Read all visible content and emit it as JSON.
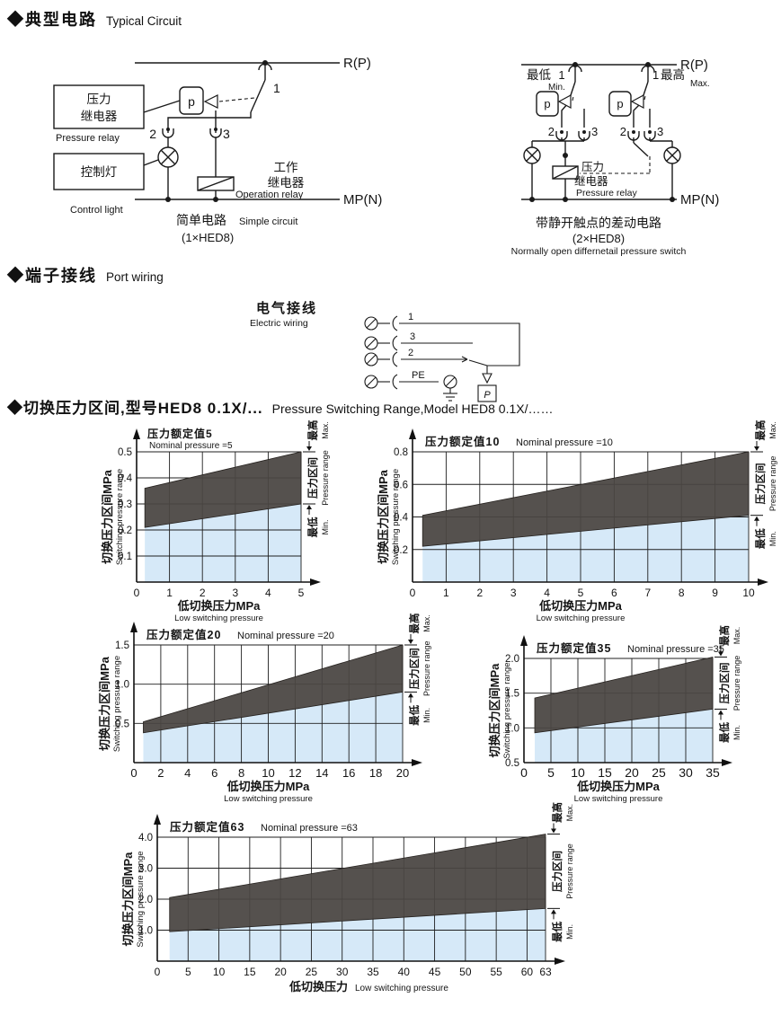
{
  "sections": {
    "typical_circuit": {
      "cn": "◆典型电路",
      "en": "Typical Circuit"
    },
    "port_wiring": {
      "cn": "◆端子接线",
      "en": "Port wiring"
    },
    "switching_range": {
      "cn": "◆切换压力区间,型号HED8 0.1X/...",
      "en": "Pressure Switching Range,Model HED8 0.1X/……"
    }
  },
  "circuit_simple": {
    "labels": {
      "rp": "R(P)",
      "mpn": "MP(N)",
      "n1": "1",
      "n2": "2",
      "n3": "3",
      "p": "p",
      "pressure_relay_cn_1": "压力",
      "pressure_relay_cn_2": "继电器",
      "pressure_relay_en": "Pressure relay",
      "control_light_cn": "控制灯",
      "control_light_en": "Control light",
      "op_relay_cn_1": "工作",
      "op_relay_cn_2": "继电器",
      "op_relay_en": "Operation relay",
      "caption_cn": "简单电路",
      "caption_en": "Simple circuit",
      "caption_model": "(1×HED8)"
    }
  },
  "circuit_diff": {
    "labels": {
      "rp": "R(P)",
      "mpn": "MP(N)",
      "min_cn": "最低",
      "min_en": "Min.",
      "max_cn": "最高",
      "max_en": "Max.",
      "n1a": "1",
      "n1b": "1",
      "n2a": "2",
      "n3a": "3",
      "n2b": "2",
      "n3b": "3",
      "pa": "p",
      "pb": "p",
      "pr_cn_1": "压力",
      "pr_cn_2": "继电器",
      "pr_en": "Pressure relay",
      "caption_cn": "带静开触点的差动电路",
      "caption_model": "(2×HED8)",
      "caption_en": "Normally open differnetail pressure switch"
    }
  },
  "wiring": {
    "title_cn": "电气接线",
    "title_en": "Electric wiring",
    "t1": "1",
    "t3": "3",
    "t2": "2",
    "tpe": "PE",
    "p": "P"
  },
  "chart_colors": {
    "band": "#4a4643",
    "blue": "#d6e9f8"
  },
  "chart_data": [
    {
      "type": "area",
      "title_cn": "压力额定值5",
      "title_en": "Nominal pressure =5",
      "x_range": [
        0,
        5
      ],
      "y_range": [
        0,
        0.5
      ],
      "x_tick_values": [
        0,
        1,
        2,
        3,
        4,
        5
      ],
      "x_tick_labels": [
        "0",
        "1",
        "2",
        "3",
        "4",
        "5"
      ],
      "y_tick_values": [
        0.1,
        0.2,
        0.3,
        0.4,
        0.5
      ],
      "y_tick_labels": [
        "0.1",
        "0.2",
        "0.3",
        "0.4",
        "0.5"
      ],
      "band": {
        "x": [
          0.25,
          5
        ],
        "lower": [
          0.21,
          0.3
        ],
        "upper": [
          0.36,
          0.5
        ]
      },
      "xlabel_cn": "低切换压力MPa",
      "xlabel_en": "Low switching pressure",
      "ylabel_cn": "切换压力区间MPa",
      "ylabel_en": "Switching pressure range",
      "right_labels": {
        "max_cn": "最高",
        "max_en": "Max.",
        "range_cn": "压力区间",
        "range_en": "Pressure range",
        "min_cn": "最低",
        "min_en": "Min."
      }
    },
    {
      "type": "area",
      "title_cn": "压力额定值10",
      "title_en": "Nominal pressure =10",
      "x_range": [
        0,
        10
      ],
      "y_range": [
        0,
        0.8
      ],
      "x_tick_values": [
        0,
        1,
        2,
        3,
        4,
        5,
        6,
        7,
        8,
        9,
        10
      ],
      "x_tick_labels": [
        "0",
        "1",
        "2",
        "3",
        "4",
        "5",
        "6",
        "7",
        "8",
        "9",
        "10"
      ],
      "y_tick_values": [
        0.2,
        0.4,
        0.6,
        0.8
      ],
      "y_tick_labels": [
        "0.2",
        "0.4",
        "0.6",
        "0.8"
      ],
      "band": {
        "x": [
          0.3,
          10
        ],
        "lower": [
          0.22,
          0.41
        ],
        "upper": [
          0.41,
          0.8
        ]
      },
      "xlabel_cn": "低切换压力MPa",
      "xlabel_en": "Low switching pressure",
      "ylabel_cn": "切换压力区间MPa",
      "ylabel_en": "Switching pressure range",
      "right_labels": {
        "max_cn": "最高",
        "max_en": "Max.",
        "range_cn": "压力区间",
        "range_en": "Pressure range",
        "min_cn": "最低",
        "min_en": "Min."
      }
    },
    {
      "type": "area",
      "title_cn": "压力额定值20",
      "title_en": "Nominal pressure =20",
      "x_range": [
        0,
        20
      ],
      "y_range": [
        0,
        1.5
      ],
      "x_tick_values": [
        0,
        2,
        4,
        6,
        8,
        10,
        12,
        14,
        16,
        18,
        20
      ],
      "x_tick_labels": [
        "0",
        "2",
        "4",
        "6",
        "8",
        "10",
        "12",
        "14",
        "16",
        "18",
        "20"
      ],
      "y_tick_values": [
        0.5,
        1.0,
        1.5
      ],
      "y_tick_labels": [
        "0.5",
        "1.0",
        "1.5"
      ],
      "band": {
        "x": [
          0.7,
          20
        ],
        "lower": [
          0.38,
          0.9
        ],
        "upper": [
          0.52,
          1.5
        ]
      },
      "xlabel_cn": "低切换压力MPa",
      "xlabel_en": "Low switching pressure",
      "ylabel_cn": "切换压力区间MPa",
      "ylabel_en": "Switching pressure range",
      "right_labels": {
        "max_cn": "最高",
        "max_en": "Max.",
        "range_cn": "压力区间",
        "range_en": "Pressure range",
        "min_cn": "最低",
        "min_en": "Min."
      }
    },
    {
      "type": "area",
      "title_cn": "压力额定值35",
      "title_en": "Nominal pressure =35",
      "x_range": [
        0,
        35
      ],
      "y_range": [
        0.5,
        2.0
      ],
      "x_tick_values": [
        0,
        5,
        10,
        15,
        20,
        25,
        30,
        35
      ],
      "x_tick_labels": [
        "0",
        "5",
        "10",
        "15",
        "20",
        "25",
        "30",
        "35"
      ],
      "y_tick_values": [
        0.5,
        1.0,
        1.5,
        2.0
      ],
      "y_tick_labels": [
        "0.5",
        "1.0",
        "1.5",
        "2.0"
      ],
      "band": {
        "x": [
          2,
          35
        ],
        "lower": [
          0.93,
          1.27
        ],
        "upper": [
          1.43,
          2.02
        ]
      },
      "xlabel_cn": "低切换压力MPa",
      "xlabel_en": "Low switching pressure",
      "ylabel_cn": "切换压力区间MPa",
      "ylabel_en": "Switching pressure range",
      "right_labels": {
        "max_cn": "最高",
        "max_en": "Max.",
        "range_cn": "压力区间",
        "range_en": "Pressure range",
        "min_cn": "最低",
        "min_en": "Min."
      }
    },
    {
      "type": "area",
      "title_cn": "压力额定值63",
      "title_en": "Nominal pressure =63",
      "x_range": [
        0,
        63
      ],
      "y_range": [
        0,
        4.0
      ],
      "x_tick_values": [
        0,
        5,
        10,
        15,
        20,
        25,
        30,
        35,
        40,
        45,
        50,
        55,
        60,
        63
      ],
      "x_tick_labels": [
        "0",
        "5",
        "10",
        "15",
        "20",
        "25",
        "30",
        "35",
        "40",
        "45",
        "50",
        "55",
        "60",
        "63"
      ],
      "y_tick_values": [
        1.0,
        2.0,
        3.0,
        4.0
      ],
      "y_tick_labels": [
        "1.0",
        "2.0",
        "3.0",
        "4.0"
      ],
      "band": {
        "x": [
          2,
          63
        ],
        "lower": [
          0.95,
          1.7
        ],
        "upper": [
          2.05,
          4.1
        ]
      },
      "xlabel_cn": "低切换压力",
      "xlabel_en": "Low switching pressure",
      "ylabel_cn": "切换压力区间MPa",
      "ylabel_en": "Switching pressure range",
      "right_labels": {
        "max_cn": "最高",
        "max_en": "Max.",
        "range_cn": "压力区间",
        "range_en": "Pressure range",
        "min_cn": "最低",
        "min_en": "Min."
      }
    }
  ]
}
